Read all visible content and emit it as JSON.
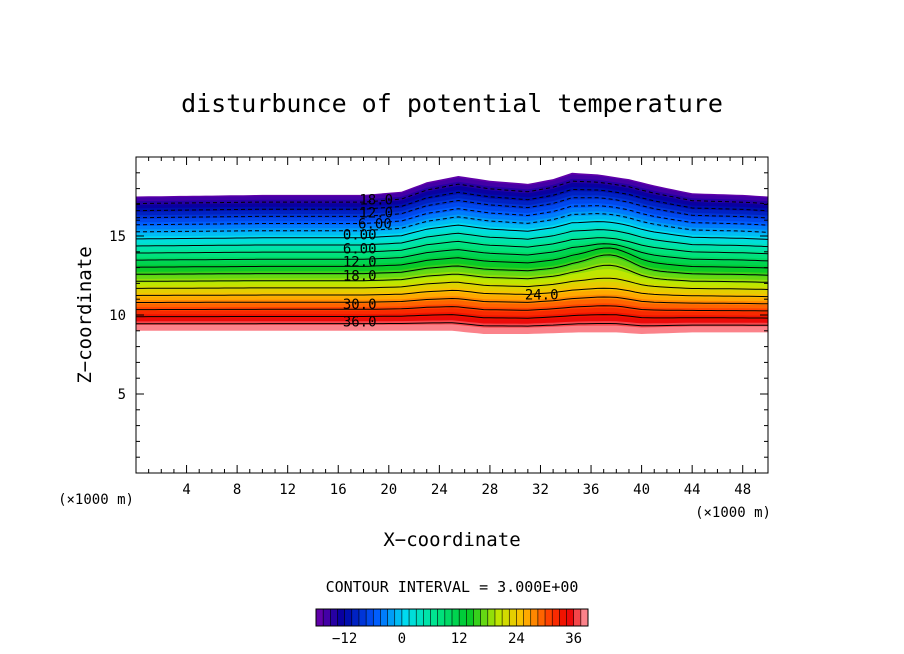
{
  "chart_data": {
    "type": "contour",
    "title": "disturbunce of potential temperature",
    "xlabel": "X−coordinate",
    "ylabel": "Z−coordinate",
    "x_unit": "(×1000 m)",
    "y_unit": "(×1000 m)",
    "xlim": [
      0,
      50
    ],
    "ylim": [
      0,
      20
    ],
    "x_ticks": [
      4,
      8,
      12,
      16,
      20,
      24,
      28,
      32,
      36,
      40,
      44,
      48
    ],
    "y_ticks": [
      5,
      10,
      15
    ],
    "contour_interval_text": "CONTOUR INTERVAL = 3.000E+00",
    "contour_interval": 3,
    "field_range": [
      -18,
      39
    ],
    "field_domain_z": [
      9.0,
      17.5
    ],
    "negative_contours_dashed": true,
    "contour_labels": [
      {
        "text": "18.0",
        "x": 19.0,
        "z": 17.3
      },
      {
        "text": "12.0",
        "x": 19.0,
        "z": 16.5
      },
      {
        "text": "6.00",
        "x": 18.9,
        "z": 15.8
      },
      {
        "text": "0.00",
        "x": 17.7,
        "z": 15.1
      },
      {
        "text": "6.00",
        "x": 17.7,
        "z": 14.2
      },
      {
        "text": "12.0",
        "x": 17.7,
        "z": 13.4
      },
      {
        "text": "18.0",
        "x": 17.7,
        "z": 12.5
      },
      {
        "text": "24.0",
        "x": 32.1,
        "z": 11.3
      },
      {
        "text": "30.0",
        "x": 17.7,
        "z": 10.7
      },
      {
        "text": "36.0",
        "x": 17.7,
        "z": 9.6
      }
    ],
    "top_boundary": [
      [
        0,
        17.5
      ],
      [
        10,
        17.6
      ],
      [
        18,
        17.6
      ],
      [
        21,
        17.8
      ],
      [
        23,
        18.4
      ],
      [
        25.5,
        18.8
      ],
      [
        28,
        18.5
      ],
      [
        31,
        18.3
      ],
      [
        33,
        18.6
      ],
      [
        34.5,
        19.0
      ],
      [
        36.5,
        18.9
      ],
      [
        39,
        18.6
      ],
      [
        41,
        18.2
      ],
      [
        44,
        17.7
      ],
      [
        48,
        17.6
      ],
      [
        50,
        17.5
      ]
    ],
    "bottom_boundary": [
      [
        0,
        9.0
      ],
      [
        25,
        9.0
      ],
      [
        27.5,
        8.8
      ],
      [
        31,
        8.8
      ],
      [
        35,
        8.9
      ],
      [
        38,
        8.9
      ],
      [
        40,
        8.8
      ],
      [
        44,
        8.9
      ],
      [
        50,
        8.9
      ]
    ],
    "colorbar": {
      "ticks": [
        -12,
        0,
        12,
        24,
        36
      ],
      "range": [
        -18,
        39
      ]
    }
  }
}
